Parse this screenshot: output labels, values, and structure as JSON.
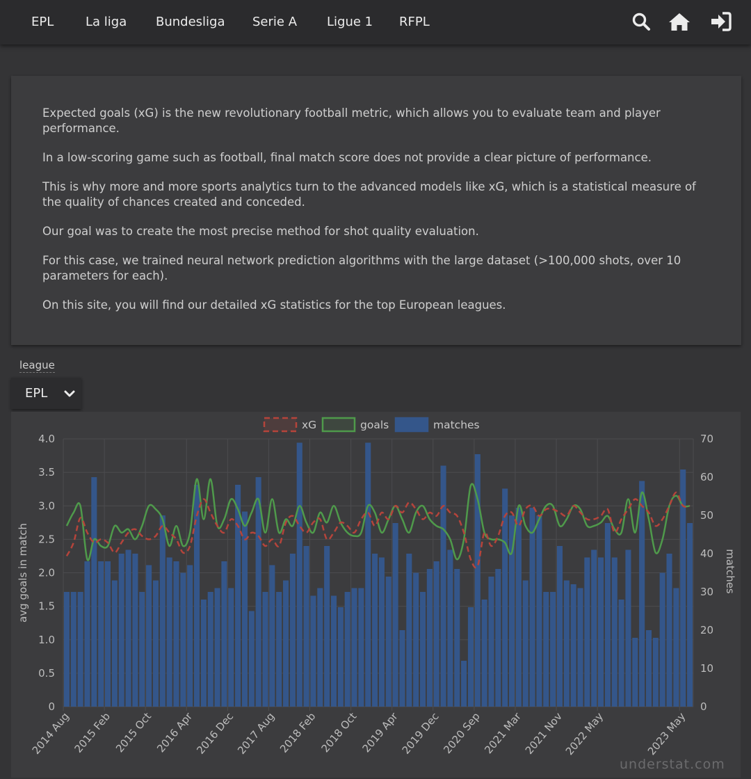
{
  "nav": {
    "links": [
      "EPL",
      "La liga",
      "Bundesliga",
      "Serie A",
      "Ligue 1",
      "RFPL"
    ],
    "icons": [
      "search-icon",
      "home-icon",
      "sign-in-icon"
    ]
  },
  "intro": {
    "paragraphs": [
      "Expected goals (xG) is the new revolutionary football metric, which allows you to evaluate team and player performance.",
      "In a low-scoring game such as football, final match score does not provide a clear picture of performance.",
      "This is why more and more sports analytics turn to the advanced models like xG, which is a statistical measure of the quality of chances created and conceded.",
      "Our goal was to create the most precise method for shot quality evaluation.",
      "For this case, we trained neural network prediction algorithms with the large dataset (>100,000 shots, over 10 parameters for each).",
      "On this site, you will find our detailed xG statistics for the top European leagues."
    ]
  },
  "league_select": {
    "label": "league",
    "value": "EPL"
  },
  "watermark": "understat.com",
  "colors": {
    "background": "#343436",
    "panel": "#3c3c3e",
    "xg_line": "#b5443b",
    "goals_line": "#4f9a4b",
    "bars": "#34568a"
  },
  "chart_data": {
    "type": "bar",
    "legend": [
      "xG",
      "goals",
      "matches"
    ],
    "legend_position": "top",
    "ylabel_left": "avg goals in match",
    "ylabel_right": "matches",
    "ylim_left": [
      0,
      4
    ],
    "ylim_right": [
      0,
      70
    ],
    "yticks_left": [
      "0",
      "0.5",
      "1.0",
      "1.5",
      "2.0",
      "2.5",
      "3.0",
      "3.5",
      "4.0"
    ],
    "yticks_right": [
      "0",
      "10",
      "20",
      "30",
      "40",
      "50",
      "60",
      "70"
    ],
    "xticks": [
      "2014 Aug",
      "2015 Feb",
      "2015 Oct",
      "2016 Apr",
      "2016 Dec",
      "2017 Aug",
      "2018 Feb",
      "2018 Oct",
      "2019 Apr",
      "2019 Dec",
      "2020 Sep",
      "2021 Mar",
      "2021 Nov",
      "2022 May",
      "2023 May"
    ],
    "grid": true,
    "series": [
      {
        "name": "matches",
        "type": "bar",
        "values": [
          30,
          30,
          30,
          38,
          60,
          38,
          38,
          33,
          40,
          41,
          40,
          30,
          37,
          33,
          50,
          39,
          38,
          35,
          37,
          58,
          28,
          30,
          31,
          38,
          31,
          58,
          51,
          25,
          60,
          30,
          37,
          30,
          33,
          40,
          69,
          42,
          29,
          31,
          42,
          29,
          26,
          30,
          31,
          31,
          69,
          40,
          39,
          34,
          48,
          20,
          40,
          35,
          30,
          36,
          38,
          63,
          41,
          36,
          12,
          26,
          66,
          28,
          34,
          36,
          57,
          50,
          52,
          33,
          52,
          50,
          30,
          30,
          42,
          33,
          32,
          31,
          39,
          41,
          39,
          48,
          39,
          28,
          41,
          18,
          59,
          20,
          18,
          35,
          40,
          31,
          62,
          48
        ],
        "labels_shown_only_at_ticks": true
      },
      {
        "name": "xG",
        "type": "line",
        "values": [
          2.25,
          2.45,
          2.82,
          2.6,
          2.45,
          2.5,
          2.45,
          2.3,
          2.45,
          2.6,
          2.65,
          2.55,
          2.5,
          2.55,
          2.7,
          2.6,
          2.5,
          2.3,
          2.4,
          2.85,
          3.1,
          2.9,
          2.7,
          2.6,
          2.8,
          2.7,
          2.5,
          2.6,
          2.55,
          2.4,
          2.5,
          2.4,
          2.75,
          2.85,
          2.7,
          2.6,
          2.75,
          2.8,
          2.5,
          2.6,
          2.75,
          2.7,
          2.6,
          2.8,
          2.9,
          2.7,
          2.9,
          2.8,
          3.0,
          2.9,
          3.05,
          2.95,
          2.8,
          2.9,
          2.85,
          3.0,
          2.9,
          2.85,
          2.6,
          2.2,
          2.1,
          2.6,
          2.4,
          2.55,
          2.85,
          2.9,
          2.7,
          2.95,
          3.0,
          2.85,
          2.95,
          2.95,
          2.9,
          2.85,
          3.0,
          2.9,
          2.8,
          2.8,
          2.85,
          2.95,
          2.6,
          2.8,
          2.95,
          3.1,
          3.0,
          2.9,
          2.7,
          2.8,
          3.0,
          3.2,
          3.0,
          3.0
        ]
      },
      {
        "name": "goals",
        "type": "line",
        "values": [
          2.7,
          2.9,
          3.0,
          2.2,
          2.5,
          2.4,
          2.4,
          2.7,
          2.6,
          2.65,
          2.5,
          2.7,
          3.0,
          2.95,
          2.8,
          2.4,
          2.7,
          2.4,
          2.6,
          3.4,
          2.8,
          3.4,
          2.7,
          2.8,
          3.1,
          2.95,
          2.7,
          2.9,
          3.1,
          2.6,
          3.1,
          2.6,
          2.8,
          2.7,
          3.0,
          2.75,
          2.6,
          2.9,
          2.75,
          3.0,
          2.75,
          2.6,
          2.55,
          2.6,
          3.0,
          2.9,
          2.6,
          2.8,
          3.0,
          2.8,
          2.6,
          2.9,
          3.0,
          2.8,
          2.7,
          2.65,
          2.5,
          2.2,
          2.5,
          3.3,
          3.1,
          2.6,
          2.5,
          2.5,
          2.45,
          2.3,
          3.0,
          2.7,
          2.6,
          2.8,
          3.0,
          3.0,
          2.7,
          2.8,
          3.0,
          2.95,
          2.7,
          2.7,
          2.75,
          2.85,
          2.65,
          2.6,
          3.1,
          2.6,
          3.2,
          2.8,
          2.3,
          2.5,
          3.0,
          3.15,
          3.0,
          3.0
        ]
      }
    ]
  }
}
